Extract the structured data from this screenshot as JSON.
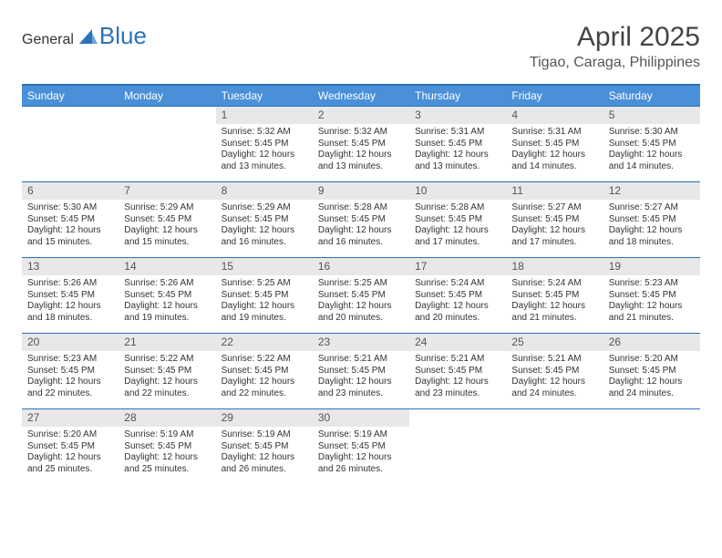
{
  "brand": {
    "part1": "General",
    "part2": "Blue",
    "tri_color": "#2a73b8"
  },
  "title": "April 2025",
  "location": "Tigao, Caraga, Philippines",
  "header_bg": "#4a90d9",
  "header_fg": "#ffffff",
  "daynum_bg": "#e8e8e8",
  "row_border": "#2a73b8",
  "body_font_size": 10,
  "day_header_font_size": 12,
  "title_font_size": 30,
  "location_font_size": 16,
  "days_of_week": [
    "Sunday",
    "Monday",
    "Tuesday",
    "Wednesday",
    "Thursday",
    "Friday",
    "Saturday"
  ],
  "weeks": [
    [
      null,
      null,
      {
        "n": "1",
        "sr": "5:32 AM",
        "ss": "5:45 PM",
        "dl": "12 hours and 13 minutes."
      },
      {
        "n": "2",
        "sr": "5:32 AM",
        "ss": "5:45 PM",
        "dl": "12 hours and 13 minutes."
      },
      {
        "n": "3",
        "sr": "5:31 AM",
        "ss": "5:45 PM",
        "dl": "12 hours and 13 minutes."
      },
      {
        "n": "4",
        "sr": "5:31 AM",
        "ss": "5:45 PM",
        "dl": "12 hours and 14 minutes."
      },
      {
        "n": "5",
        "sr": "5:30 AM",
        "ss": "5:45 PM",
        "dl": "12 hours and 14 minutes."
      }
    ],
    [
      {
        "n": "6",
        "sr": "5:30 AM",
        "ss": "5:45 PM",
        "dl": "12 hours and 15 minutes."
      },
      {
        "n": "7",
        "sr": "5:29 AM",
        "ss": "5:45 PM",
        "dl": "12 hours and 15 minutes."
      },
      {
        "n": "8",
        "sr": "5:29 AM",
        "ss": "5:45 PM",
        "dl": "12 hours and 16 minutes."
      },
      {
        "n": "9",
        "sr": "5:28 AM",
        "ss": "5:45 PM",
        "dl": "12 hours and 16 minutes."
      },
      {
        "n": "10",
        "sr": "5:28 AM",
        "ss": "5:45 PM",
        "dl": "12 hours and 17 minutes."
      },
      {
        "n": "11",
        "sr": "5:27 AM",
        "ss": "5:45 PM",
        "dl": "12 hours and 17 minutes."
      },
      {
        "n": "12",
        "sr": "5:27 AM",
        "ss": "5:45 PM",
        "dl": "12 hours and 18 minutes."
      }
    ],
    [
      {
        "n": "13",
        "sr": "5:26 AM",
        "ss": "5:45 PM",
        "dl": "12 hours and 18 minutes."
      },
      {
        "n": "14",
        "sr": "5:26 AM",
        "ss": "5:45 PM",
        "dl": "12 hours and 19 minutes."
      },
      {
        "n": "15",
        "sr": "5:25 AM",
        "ss": "5:45 PM",
        "dl": "12 hours and 19 minutes."
      },
      {
        "n": "16",
        "sr": "5:25 AM",
        "ss": "5:45 PM",
        "dl": "12 hours and 20 minutes."
      },
      {
        "n": "17",
        "sr": "5:24 AM",
        "ss": "5:45 PM",
        "dl": "12 hours and 20 minutes."
      },
      {
        "n": "18",
        "sr": "5:24 AM",
        "ss": "5:45 PM",
        "dl": "12 hours and 21 minutes."
      },
      {
        "n": "19",
        "sr": "5:23 AM",
        "ss": "5:45 PM",
        "dl": "12 hours and 21 minutes."
      }
    ],
    [
      {
        "n": "20",
        "sr": "5:23 AM",
        "ss": "5:45 PM",
        "dl": "12 hours and 22 minutes."
      },
      {
        "n": "21",
        "sr": "5:22 AM",
        "ss": "5:45 PM",
        "dl": "12 hours and 22 minutes."
      },
      {
        "n": "22",
        "sr": "5:22 AM",
        "ss": "5:45 PM",
        "dl": "12 hours and 22 minutes."
      },
      {
        "n": "23",
        "sr": "5:21 AM",
        "ss": "5:45 PM",
        "dl": "12 hours and 23 minutes."
      },
      {
        "n": "24",
        "sr": "5:21 AM",
        "ss": "5:45 PM",
        "dl": "12 hours and 23 minutes."
      },
      {
        "n": "25",
        "sr": "5:21 AM",
        "ss": "5:45 PM",
        "dl": "12 hours and 24 minutes."
      },
      {
        "n": "26",
        "sr": "5:20 AM",
        "ss": "5:45 PM",
        "dl": "12 hours and 24 minutes."
      }
    ],
    [
      {
        "n": "27",
        "sr": "5:20 AM",
        "ss": "5:45 PM",
        "dl": "12 hours and 25 minutes."
      },
      {
        "n": "28",
        "sr": "5:19 AM",
        "ss": "5:45 PM",
        "dl": "12 hours and 25 minutes."
      },
      {
        "n": "29",
        "sr": "5:19 AM",
        "ss": "5:45 PM",
        "dl": "12 hours and 26 minutes."
      },
      {
        "n": "30",
        "sr": "5:19 AM",
        "ss": "5:45 PM",
        "dl": "12 hours and 26 minutes."
      },
      null,
      null,
      null
    ]
  ],
  "labels": {
    "sunrise": "Sunrise: ",
    "sunset": "Sunset: ",
    "daylight": "Daylight: "
  }
}
